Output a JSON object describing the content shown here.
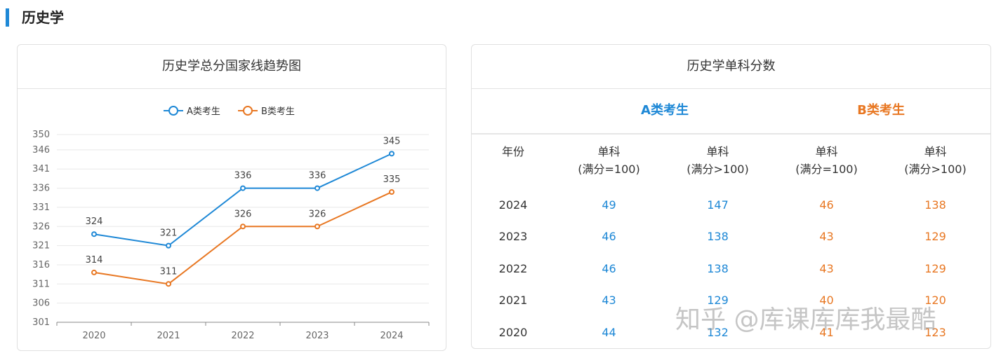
{
  "section": {
    "title": "历史学"
  },
  "chart_card": {
    "title": "历史学总分国家线趋势图"
  },
  "chart_data": {
    "type": "line",
    "title": "历史学总分国家线趋势图",
    "categories": [
      "2020",
      "2021",
      "2022",
      "2023",
      "2024"
    ],
    "series": [
      {
        "name": "A类考生",
        "color": "#1e88d6",
        "values": [
          324,
          321,
          336,
          336,
          345
        ]
      },
      {
        "name": "B类考生",
        "color": "#e87722",
        "values": [
          314,
          311,
          326,
          326,
          335
        ]
      }
    ],
    "y_ticks": [
      301,
      306,
      311,
      316,
      321,
      326,
      331,
      336,
      341,
      346,
      350
    ],
    "ylim": [
      301,
      350
    ],
    "legend_position": "top-center",
    "grid": true
  },
  "table_card": {
    "title": "历史学单科分数",
    "group_a": "A类考生",
    "group_b": "B类考生",
    "header_year": "年份",
    "header_col1": [
      "单科",
      "(满分=100)"
    ],
    "header_col2": [
      "单科",
      "(满分>100)"
    ],
    "header_col3": [
      "单科",
      "(满分=100)"
    ],
    "header_col4": [
      "单科",
      "(满分>100)"
    ],
    "rows": [
      {
        "year": "2024",
        "a1": "49",
        "a2": "147",
        "b1": "46",
        "b2": "138"
      },
      {
        "year": "2023",
        "a1": "46",
        "a2": "138",
        "b1": "43",
        "b2": "129"
      },
      {
        "year": "2022",
        "a1": "46",
        "a2": "138",
        "b1": "43",
        "b2": "129"
      },
      {
        "year": "2021",
        "a1": "43",
        "a2": "129",
        "b1": "40",
        "b2": "120"
      },
      {
        "year": "2020",
        "a1": "44",
        "a2": "132",
        "b1": "41",
        "b2": "123"
      }
    ]
  },
  "watermark": "知乎 @库课库库我最酷",
  "colors": {
    "accent": "#1e88d6",
    "series_a": "#1e88d6",
    "series_b": "#e87722"
  }
}
